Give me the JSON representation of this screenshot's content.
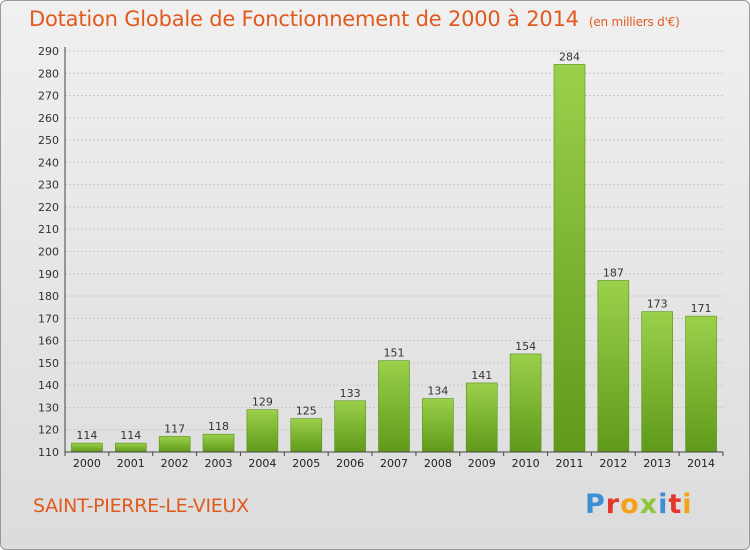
{
  "header": {
    "title": "Dotation Globale de Fonctionnement de 2000 à 2014",
    "subtitle": "(en milliers d'€)"
  },
  "commune": "SAINT-PIERRE-LE-VIEUX",
  "logo": {
    "letters": [
      "P",
      "r",
      "o",
      "x",
      "i",
      "t",
      "i"
    ]
  },
  "colors": {
    "accent": "#e05a1e",
    "bar_top": "#9bd04a",
    "bar_bottom": "#5f9a1a"
  },
  "chart_data": {
    "type": "bar",
    "title": "Dotation Globale de Fonctionnement de 2000 à 2014",
    "subtitle": "(en milliers d'€)",
    "categories": [
      "2000",
      "2001",
      "2002",
      "2003",
      "2004",
      "2005",
      "2006",
      "2007",
      "2008",
      "2009",
      "2010",
      "2011",
      "2012",
      "2013",
      "2014"
    ],
    "values": [
      114,
      114,
      117,
      118,
      129,
      125,
      133,
      151,
      134,
      141,
      154,
      284,
      187,
      173,
      171
    ],
    "ylim": [
      110,
      290
    ],
    "yticks": [
      110,
      120,
      130,
      140,
      150,
      160,
      170,
      180,
      190,
      200,
      210,
      220,
      230,
      240,
      250,
      260,
      270,
      280,
      290
    ],
    "grid": true,
    "xlabel": "",
    "ylabel": ""
  }
}
